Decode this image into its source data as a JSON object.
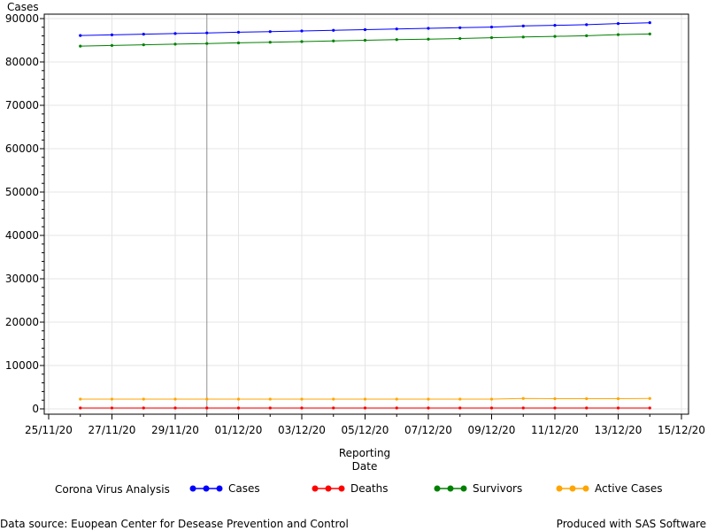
{
  "chart_data": {
    "type": "line",
    "ylabel": "Cases",
    "xlabel_lines": [
      "Reporting",
      "Date"
    ],
    "ylim": [
      0,
      90000
    ],
    "yticks": [
      0,
      10000,
      20000,
      30000,
      40000,
      50000,
      60000,
      70000,
      80000,
      90000
    ],
    "xlim": [
      "25/11/20",
      "15/12/20"
    ],
    "xticks": [
      "25/11/20",
      "27/11/20",
      "29/11/20",
      "01/12/20",
      "03/12/20",
      "05/12/20",
      "07/12/20",
      "09/12/20",
      "11/12/20",
      "13/12/20",
      "15/12/20"
    ],
    "reference_line_x": "30/11/20",
    "grid": true,
    "x": [
      "26/11/20",
      "27/11/20",
      "28/11/20",
      "29/11/20",
      "30/11/20",
      "01/12/20",
      "02/12/20",
      "03/12/20",
      "04/12/20",
      "05/12/20",
      "06/12/20",
      "07/12/20",
      "08/12/20",
      "09/12/20",
      "10/12/20",
      "11/12/20",
      "12/12/20",
      "13/12/20",
      "14/12/20"
    ],
    "series": [
      {
        "name": "Cases",
        "color": "#0000ff",
        "values": [
          86100,
          86250,
          86400,
          86550,
          86700,
          86850,
          87000,
          87150,
          87300,
          87450,
          87600,
          87750,
          87900,
          88050,
          88300,
          88450,
          88600,
          88850,
          89050
        ]
      },
      {
        "name": "Deaths",
        "color": "#ff0000",
        "values": [
          200,
          200,
          200,
          200,
          200,
          200,
          200,
          200,
          200,
          200,
          200,
          200,
          200,
          200,
          200,
          200,
          200,
          200,
          200
        ]
      },
      {
        "name": "Survivors",
        "color": "#008000",
        "values": [
          83650,
          83800,
          83950,
          84100,
          84250,
          84400,
          84550,
          84700,
          84850,
          85000,
          85150,
          85250,
          85400,
          85600,
          85750,
          85900,
          86050,
          86300,
          86450
        ]
      },
      {
        "name": "Active Cases",
        "color": "#ffa500",
        "values": [
          2250,
          2250,
          2250,
          2250,
          2250,
          2250,
          2250,
          2250,
          2250,
          2250,
          2250,
          2250,
          2250,
          2250,
          2400,
          2350,
          2350,
          2350,
          2400
        ]
      }
    ],
    "legend_title": "Corona Virus Analysis",
    "legend_position": "bottom"
  },
  "footer": {
    "source": "Data source: Euopean Center for Desease Prevention and Control",
    "credit": "Produced with SAS Software"
  }
}
